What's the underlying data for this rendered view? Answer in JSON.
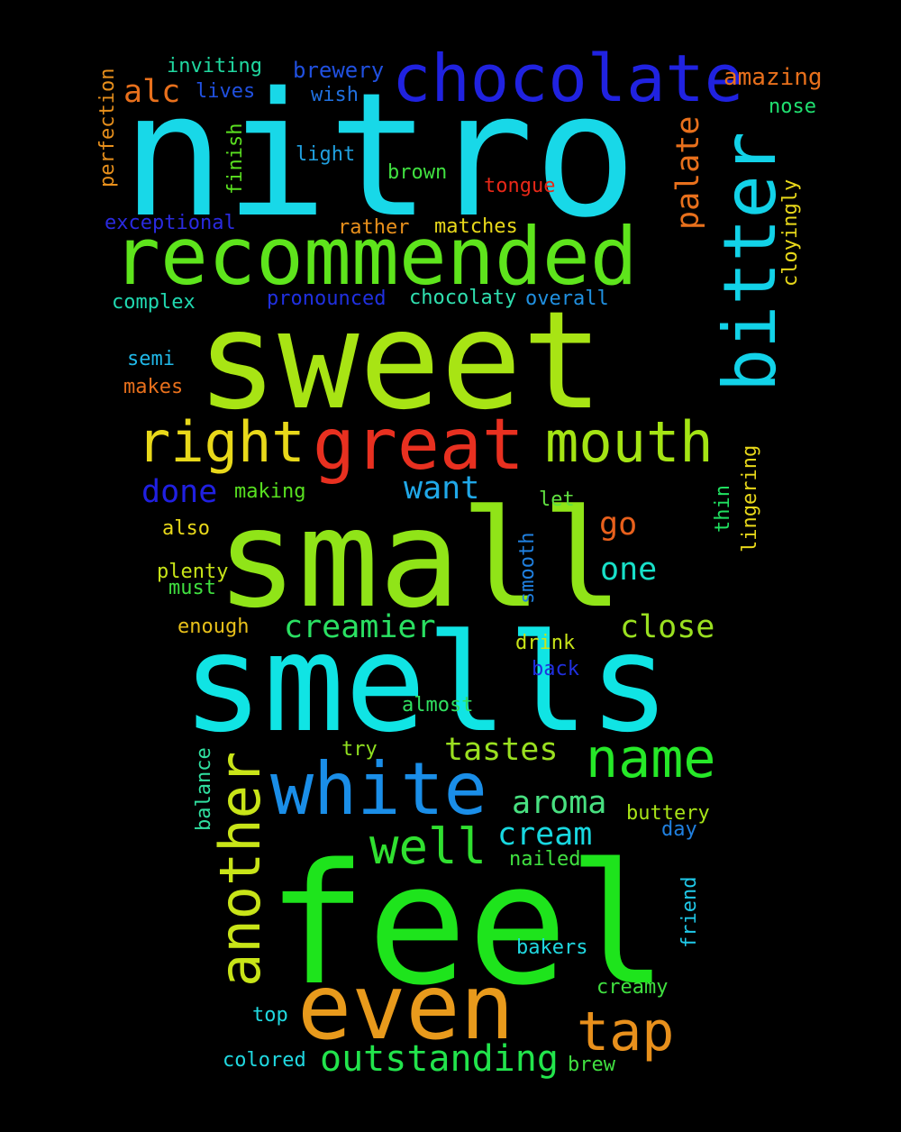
{
  "background": "#000000",
  "words": [
    {
      "text": "nitro",
      "color": "#18d8e8"
    },
    {
      "text": "sweet",
      "color": "#a8e414"
    },
    {
      "text": "small",
      "color": "#90e418"
    },
    {
      "text": "feel",
      "color": "#1ee41c"
    },
    {
      "text": "smells",
      "color": "#10e4e4"
    },
    {
      "text": "even",
      "color": "#e89a1c"
    },
    {
      "text": "recommended",
      "color": "#5ee41c"
    },
    {
      "text": "chocolate",
      "color": "#2022e0"
    },
    {
      "text": "bitter",
      "color": "#12d2e8"
    },
    {
      "text": "great",
      "color": "#e83020"
    },
    {
      "text": "white",
      "color": "#1a8ee8"
    },
    {
      "text": "another",
      "color": "#c8e418"
    },
    {
      "text": "right",
      "color": "#e8d81a"
    },
    {
      "text": "mouth",
      "color": "#a4e414"
    },
    {
      "text": "name",
      "color": "#26e828"
    },
    {
      "text": "tap",
      "color": "#e8901c"
    },
    {
      "text": "well",
      "color": "#30e030"
    },
    {
      "text": "outstanding",
      "color": "#22e44c"
    },
    {
      "text": "creamier",
      "color": "#2ae062"
    },
    {
      "text": "tastes",
      "color": "#9ae020"
    },
    {
      "text": "aroma",
      "color": "#48e080"
    },
    {
      "text": "cream",
      "color": "#18d8e0"
    },
    {
      "text": "close",
      "color": "#9ae020"
    },
    {
      "text": "palate",
      "color": "#e8701c"
    },
    {
      "text": "done",
      "color": "#2020e0"
    },
    {
      "text": "want",
      "color": "#20a8e8"
    },
    {
      "text": "one",
      "color": "#18e0c8"
    },
    {
      "text": "go",
      "color": "#e8601c"
    },
    {
      "text": "alc",
      "color": "#e8701c"
    },
    {
      "text": "amazing",
      "color": "#e8701c"
    },
    {
      "text": "brewery",
      "color": "#2050e0"
    },
    {
      "text": "inviting",
      "color": "#20d8a0"
    },
    {
      "text": "lives",
      "color": "#2050e0"
    },
    {
      "text": "wish",
      "color": "#2070e0"
    },
    {
      "text": "nose",
      "color": "#20e070"
    },
    {
      "text": "perfection",
      "color": "#e8901c"
    },
    {
      "text": "finish",
      "color": "#5ae020"
    },
    {
      "text": "light",
      "color": "#20a0e0"
    },
    {
      "text": "brown",
      "color": "#40e040"
    },
    {
      "text": "tongue",
      "color": "#e82818"
    },
    {
      "text": "cloyingly",
      "color": "#e8d81a"
    },
    {
      "text": "exceptional",
      "color": "#2a2ae0"
    },
    {
      "text": "rather",
      "color": "#e8901c"
    },
    {
      "text": "matches",
      "color": "#e8d81a"
    },
    {
      "text": "complex",
      "color": "#20d8b0"
    },
    {
      "text": "pronounced",
      "color": "#2030e0"
    },
    {
      "text": "chocolaty",
      "color": "#30e0b0"
    },
    {
      "text": "overall",
      "color": "#2090e0"
    },
    {
      "text": "semi",
      "color": "#20b8e8"
    },
    {
      "text": "makes",
      "color": "#e8701c"
    },
    {
      "text": "lingering",
      "color": "#e8d81a"
    },
    {
      "text": "making",
      "color": "#58e020"
    },
    {
      "text": "thin",
      "color": "#20e060"
    },
    {
      "text": "let",
      "color": "#60e040"
    },
    {
      "text": "also",
      "color": "#e8d81a"
    },
    {
      "text": "plenty",
      "color": "#c8e418"
    },
    {
      "text": "must",
      "color": "#40e040"
    },
    {
      "text": "smooth",
      "color": "#2080e0"
    },
    {
      "text": "enough",
      "color": "#e8c01a"
    },
    {
      "text": "drink",
      "color": "#c8e418"
    },
    {
      "text": "back",
      "color": "#2030e0"
    },
    {
      "text": "almost",
      "color": "#30e060"
    },
    {
      "text": "try",
      "color": "#90e020"
    },
    {
      "text": "balance",
      "color": "#30e0a0"
    },
    {
      "text": "buttery",
      "color": "#a8e418"
    },
    {
      "text": "day",
      "color": "#2080e0"
    },
    {
      "text": "nailed",
      "color": "#40e040"
    },
    {
      "text": "friend",
      "color": "#20c8e8"
    },
    {
      "text": "bakers",
      "color": "#20d8e0"
    },
    {
      "text": "creamy",
      "color": "#40e040"
    },
    {
      "text": "top",
      "color": "#20d8e0"
    },
    {
      "text": "colored",
      "color": "#20d8e0"
    },
    {
      "text": "brew",
      "color": "#40e040"
    }
  ]
}
